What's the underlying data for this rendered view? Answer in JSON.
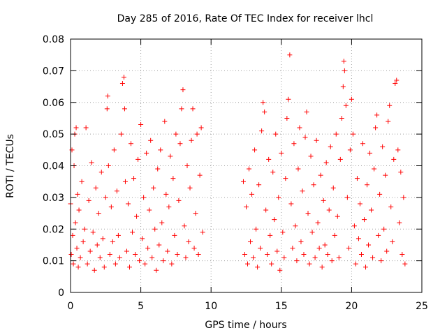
{
  "chart_data": {
    "type": "scatter",
    "title": "Day 285 of 2016, Rate Of TEC Index for receiver lhcl",
    "xlabel": "GPS time / hours",
    "ylabel": "ROTI / TECUs",
    "xlim": [
      0,
      25
    ],
    "ylim": [
      0,
      0.08
    ],
    "xticks": [
      0,
      5,
      10,
      15,
      20,
      25
    ],
    "xtick_labels": [
      "0",
      "5",
      "10",
      "15",
      "20",
      "25"
    ],
    "yticks": [
      0,
      0.01,
      0.02,
      0.03,
      0.04,
      0.05,
      0.06,
      0.07,
      0.08
    ],
    "ytick_labels": [
      "0",
      "0.01",
      "0.02",
      "0.03",
      "0.04",
      "0.05",
      "0.06",
      "0.07",
      "0.08"
    ],
    "grid": true,
    "marker": "+",
    "color": "#ff0000",
    "data_gap_hours": [
      9.5,
      12.3
    ],
    "series": [
      {
        "name": "ROTI",
        "points": [
          [
            0.0,
            0.028
          ],
          [
            0.05,
            0.012
          ],
          [
            0.1,
            0.045
          ],
          [
            0.15,
            0.018
          ],
          [
            0.2,
            0.009
          ],
          [
            0.25,
            0.04
          ],
          [
            0.3,
            0.05
          ],
          [
            0.35,
            0.022
          ],
          [
            0.4,
            0.052
          ],
          [
            0.45,
            0.014
          ],
          [
            0.5,
            0.031
          ],
          [
            0.55,
            0.008
          ],
          [
            0.6,
            0.026
          ],
          [
            0.7,
            0.011
          ],
          [
            0.8,
            0.035
          ],
          [
            0.9,
            0.016
          ],
          [
            1.0,
            0.02
          ],
          [
            1.1,
            0.052
          ],
          [
            1.2,
            0.009
          ],
          [
            1.3,
            0.029
          ],
          [
            1.4,
            0.013
          ],
          [
            1.5,
            0.041
          ],
          [
            1.6,
            0.019
          ],
          [
            1.7,
            0.007
          ],
          [
            1.8,
            0.033
          ],
          [
            1.9,
            0.015
          ],
          [
            2.0,
            0.025
          ],
          [
            2.1,
            0.011
          ],
          [
            2.2,
            0.038
          ],
          [
            2.3,
            0.017
          ],
          [
            2.4,
            0.008
          ],
          [
            2.5,
            0.03
          ],
          [
            2.6,
            0.058
          ],
          [
            2.65,
            0.062
          ],
          [
            2.7,
            0.04
          ],
          [
            2.8,
            0.012
          ],
          [
            2.9,
            0.027
          ],
          [
            3.0,
            0.016
          ],
          [
            3.1,
            0.045
          ],
          [
            3.2,
            0.009
          ],
          [
            3.3,
            0.032
          ],
          [
            3.4,
            0.018
          ],
          [
            3.5,
            0.011
          ],
          [
            3.6,
            0.05
          ],
          [
            3.7,
            0.066
          ],
          [
            3.8,
            0.068
          ],
          [
            3.85,
            0.058
          ],
          [
            3.9,
            0.035
          ],
          [
            4.0,
            0.013
          ],
          [
            4.1,
            0.028
          ],
          [
            4.2,
            0.008
          ],
          [
            4.3,
            0.047
          ],
          [
            4.4,
            0.019
          ],
          [
            4.5,
            0.036
          ],
          [
            4.6,
            0.012
          ],
          [
            4.7,
            0.024
          ],
          [
            4.8,
            0.042
          ],
          [
            4.9,
            0.01
          ],
          [
            5.0,
            0.053
          ],
          [
            5.1,
            0.017
          ],
          [
            5.2,
            0.03
          ],
          [
            5.3,
            0.009
          ],
          [
            5.4,
            0.044
          ],
          [
            5.5,
            0.014
          ],
          [
            5.6,
            0.026
          ],
          [
            5.7,
            0.048
          ],
          [
            5.8,
            0.011
          ],
          [
            5.9,
            0.033
          ],
          [
            6.0,
            0.02
          ],
          [
            6.1,
            0.007
          ],
          [
            6.2,
            0.039
          ],
          [
            6.3,
            0.015
          ],
          [
            6.4,
            0.045
          ],
          [
            6.5,
            0.022
          ],
          [
            6.6,
            0.01
          ],
          [
            6.7,
            0.054
          ],
          [
            6.8,
            0.031
          ],
          [
            6.9,
            0.013
          ],
          [
            7.0,
            0.027
          ],
          [
            7.1,
            0.043
          ],
          [
            7.2,
            0.009
          ],
          [
            7.3,
            0.036
          ],
          [
            7.4,
            0.018
          ],
          [
            7.5,
            0.05
          ],
          [
            7.6,
            0.012
          ],
          [
            7.7,
            0.029
          ],
          [
            7.8,
            0.047
          ],
          [
            7.9,
            0.058
          ],
          [
            8.0,
            0.064
          ],
          [
            8.1,
            0.021
          ],
          [
            8.2,
            0.011
          ],
          [
            8.3,
            0.04
          ],
          [
            8.4,
            0.016
          ],
          [
            8.5,
            0.033
          ],
          [
            8.6,
            0.048
          ],
          [
            8.7,
            0.058
          ],
          [
            8.8,
            0.014
          ],
          [
            8.9,
            0.025
          ],
          [
            9.0,
            0.05
          ],
          [
            9.1,
            0.012
          ],
          [
            9.2,
            0.037
          ],
          [
            9.3,
            0.052
          ],
          [
            9.4,
            0.019
          ],
          [
            12.3,
            0.035
          ],
          [
            12.4,
            0.012
          ],
          [
            12.5,
            0.027
          ],
          [
            12.6,
            0.009
          ],
          [
            12.7,
            0.039
          ],
          [
            12.8,
            0.016
          ],
          [
            12.9,
            0.031
          ],
          [
            13.0,
            0.011
          ],
          [
            13.1,
            0.045
          ],
          [
            13.2,
            0.02
          ],
          [
            13.3,
            0.008
          ],
          [
            13.4,
            0.034
          ],
          [
            13.5,
            0.014
          ],
          [
            13.6,
            0.051
          ],
          [
            13.7,
            0.06
          ],
          [
            13.8,
            0.057
          ],
          [
            13.9,
            0.026
          ],
          [
            14.0,
            0.012
          ],
          [
            14.1,
            0.042
          ],
          [
            14.2,
            0.018
          ],
          [
            14.3,
            0.009
          ],
          [
            14.4,
            0.038
          ],
          [
            14.5,
            0.023
          ],
          [
            14.6,
            0.05
          ],
          [
            14.7,
            0.013
          ],
          [
            14.8,
            0.03
          ],
          [
            14.9,
            0.007
          ],
          [
            15.0,
            0.044
          ],
          [
            15.1,
            0.019
          ],
          [
            15.2,
            0.011
          ],
          [
            15.3,
            0.036
          ],
          [
            15.4,
            0.055
          ],
          [
            15.5,
            0.061
          ],
          [
            15.6,
            0.075
          ],
          [
            15.7,
            0.028
          ],
          [
            15.8,
            0.014
          ],
          [
            15.9,
            0.047
          ],
          [
            16.0,
            0.021
          ],
          [
            16.1,
            0.01
          ],
          [
            16.2,
            0.039
          ],
          [
            16.3,
            0.052
          ],
          [
            16.4,
            0.016
          ],
          [
            16.5,
            0.032
          ],
          [
            16.6,
            0.012
          ],
          [
            16.7,
            0.049
          ],
          [
            16.8,
            0.057
          ],
          [
            16.9,
            0.025
          ],
          [
            17.0,
            0.009
          ],
          [
            17.1,
            0.043
          ],
          [
            17.2,
            0.019
          ],
          [
            17.3,
            0.034
          ],
          [
            17.4,
            0.011
          ],
          [
            17.5,
            0.048
          ],
          [
            17.6,
            0.022
          ],
          [
            17.7,
            0.014
          ],
          [
            17.8,
            0.037
          ],
          [
            17.9,
            0.008
          ],
          [
            18.0,
            0.029
          ],
          [
            18.1,
            0.015
          ],
          [
            18.2,
            0.041
          ],
          [
            18.3,
            0.012
          ],
          [
            18.4,
            0.026
          ],
          [
            18.5,
            0.046
          ],
          [
            18.6,
            0.01
          ],
          [
            18.7,
            0.033
          ],
          [
            18.8,
            0.018
          ],
          [
            18.9,
            0.05
          ],
          [
            19.0,
            0.024
          ],
          [
            19.1,
            0.011
          ],
          [
            19.2,
            0.042
          ],
          [
            19.3,
            0.055
          ],
          [
            19.4,
            0.065
          ],
          [
            19.45,
            0.073
          ],
          [
            19.5,
            0.07
          ],
          [
            19.6,
            0.059
          ],
          [
            19.7,
            0.03
          ],
          [
            19.8,
            0.014
          ],
          [
            19.9,
            0.045
          ],
          [
            20.0,
            0.061
          ],
          [
            20.1,
            0.05
          ],
          [
            20.2,
            0.021
          ],
          [
            20.3,
            0.009
          ],
          [
            20.4,
            0.036
          ],
          [
            20.5,
            0.017
          ],
          [
            20.6,
            0.028
          ],
          [
            20.7,
            0.012
          ],
          [
            20.8,
            0.047
          ],
          [
            20.9,
            0.023
          ],
          [
            21.0,
            0.008
          ],
          [
            21.1,
            0.034
          ],
          [
            21.2,
            0.015
          ],
          [
            21.3,
            0.044
          ],
          [
            21.4,
            0.026
          ],
          [
            21.5,
            0.011
          ],
          [
            21.6,
            0.039
          ],
          [
            21.7,
            0.052
          ],
          [
            21.8,
            0.056
          ],
          [
            21.9,
            0.018
          ],
          [
            22.0,
            0.031
          ],
          [
            22.1,
            0.01
          ],
          [
            22.2,
            0.046
          ],
          [
            22.3,
            0.02
          ],
          [
            22.4,
            0.037
          ],
          [
            22.5,
            0.013
          ],
          [
            22.6,
            0.054
          ],
          [
            22.7,
            0.059
          ],
          [
            22.8,
            0.027
          ],
          [
            22.9,
            0.016
          ],
          [
            23.0,
            0.042
          ],
          [
            23.1,
            0.066
          ],
          [
            23.2,
            0.067
          ],
          [
            23.3,
            0.045
          ],
          [
            23.4,
            0.022
          ],
          [
            23.5,
            0.038
          ],
          [
            23.6,
            0.012
          ],
          [
            23.7,
            0.03
          ],
          [
            23.8,
            0.009
          ]
        ]
      }
    ]
  }
}
